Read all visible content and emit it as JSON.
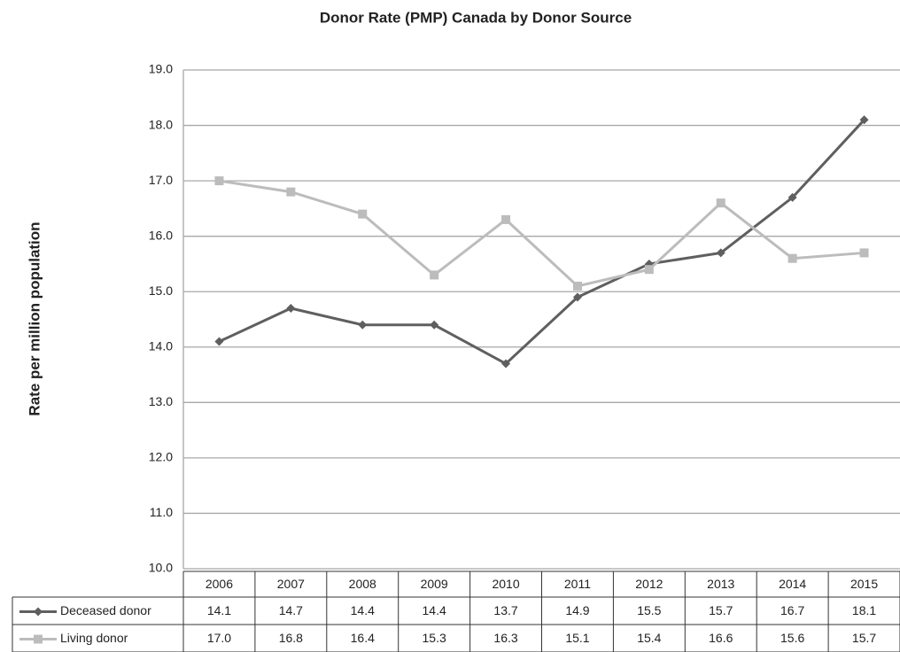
{
  "chart_data": {
    "type": "line",
    "title": "Donor Rate (PMP) Canada by Donor Source",
    "y_label": "Rate per million population",
    "categories": [
      "2006",
      "2007",
      "2008",
      "2009",
      "2010",
      "2011",
      "2012",
      "2013",
      "2014",
      "2015"
    ],
    "series": [
      {
        "name": "Deceased donor",
        "color": "#5f5f5f",
        "marker": "diamond",
        "values": [
          14.1,
          14.7,
          14.4,
          14.4,
          13.7,
          14.9,
          15.5,
          15.7,
          16.7,
          18.1
        ],
        "value_labels": [
          "14.1",
          "14.7",
          "14.4",
          "14.4",
          "13.7",
          "14.9",
          "15.5",
          "15.7",
          "16.7",
          "18.1"
        ]
      },
      {
        "name": "Living donor",
        "color": "#bcbcbc",
        "marker": "square",
        "values": [
          17.0,
          16.8,
          16.4,
          15.3,
          16.3,
          15.1,
          15.4,
          16.6,
          15.6,
          15.7
        ],
        "value_labels": [
          "17.0",
          "16.8",
          "16.4",
          "15.3",
          "16.3",
          "15.1",
          "15.4",
          "16.6",
          "15.6",
          "15.7"
        ]
      }
    ],
    "ylim": [
      10,
      19
    ],
    "yticks": [
      {
        "value": 10,
        "label": "10.0"
      },
      {
        "value": 11,
        "label": "11.0"
      },
      {
        "value": 12,
        "label": "12.0"
      },
      {
        "value": 13,
        "label": "13.0"
      },
      {
        "value": 14,
        "label": "14.0"
      },
      {
        "value": 15,
        "label": "15.0"
      },
      {
        "value": 16,
        "label": "16.0"
      },
      {
        "value": 17,
        "label": "17.0"
      },
      {
        "value": 18,
        "label": "18.0"
      },
      {
        "value": 19,
        "label": "19.0"
      }
    ],
    "grid": true,
    "data_table": true
  }
}
